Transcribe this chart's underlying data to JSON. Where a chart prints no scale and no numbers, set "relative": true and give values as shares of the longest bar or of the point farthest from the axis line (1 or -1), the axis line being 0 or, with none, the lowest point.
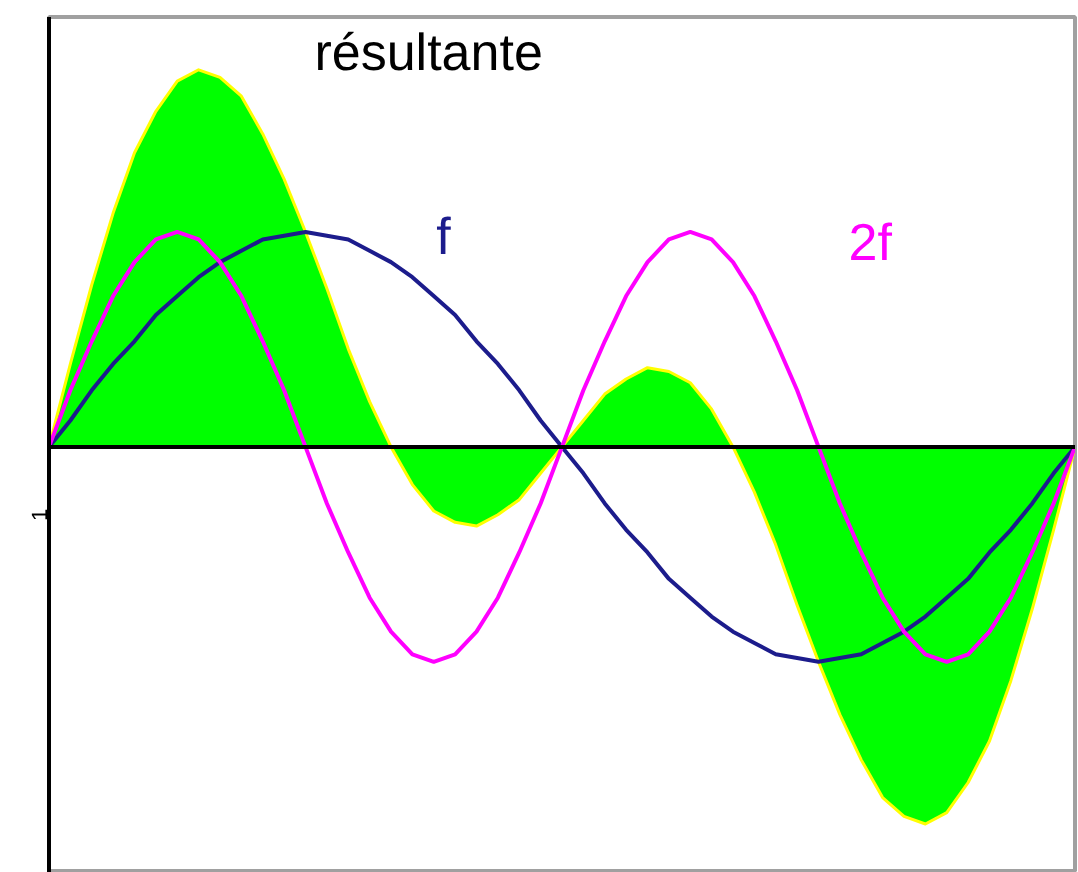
{
  "chart_data": {
    "type": "line",
    "relative": true,
    "categories": [
      null,
      null,
      null,
      null,
      null,
      null,
      null,
      null,
      null,
      null,
      null,
      null,
      null,
      null,
      null,
      null,
      null,
      null,
      null,
      null,
      null,
      null,
      null,
      null,
      null,
      null,
      null,
      null,
      null,
      null,
      null,
      null,
      null,
      null,
      null,
      null,
      null,
      null,
      null,
      null,
      null,
      null,
      null,
      null,
      null,
      null,
      null,
      null,
      null
    ],
    "series": [
      {
        "name": "résultante",
        "type": "area",
        "color": "#00ff00",
        "values": [
          0,
          0.22,
          0.43,
          0.62,
          0.78,
          0.89,
          0.97,
          1.0,
          0.98,
          0.93,
          0.83,
          0.71,
          0.57,
          0.42,
          0.26,
          0.12,
          0,
          -0.1,
          -0.17,
          -0.2,
          -0.21,
          -0.18,
          -0.14,
          -0.07,
          0,
          0.07,
          0.14,
          0.18,
          0.21,
          0.2,
          0.17,
          0.1,
          0,
          -0.12,
          -0.26,
          -0.42,
          -0.57,
          -0.71,
          -0.83,
          -0.93,
          -0.98,
          -1.0,
          -0.97,
          -0.89,
          -0.78,
          -0.62,
          -0.43,
          -0.22,
          0
        ]
      },
      {
        "name": "f",
        "color": "#1c1c8c",
        "values": [
          0,
          0.07,
          0.15,
          0.22,
          0.28,
          0.35,
          0.4,
          0.45,
          0.49,
          0.52,
          0.55,
          0.56,
          0.57,
          0.56,
          0.55,
          0.52,
          0.49,
          0.45,
          0.4,
          0.35,
          0.28,
          0.22,
          0.15,
          0.07,
          0,
          -0.07,
          -0.15,
          -0.22,
          -0.28,
          -0.35,
          -0.4,
          -0.45,
          -0.49,
          -0.52,
          -0.55,
          -0.56,
          -0.57,
          -0.56,
          -0.55,
          -0.52,
          -0.49,
          -0.45,
          -0.4,
          -0.35,
          -0.28,
          -0.22,
          -0.15,
          -0.07,
          0
        ]
      },
      {
        "name": "2f",
        "color": "#ff00ff",
        "values": [
          0,
          0.15,
          0.28,
          0.4,
          0.49,
          0.55,
          0.57,
          0.55,
          0.49,
          0.4,
          0.28,
          0.15,
          0,
          -0.15,
          -0.28,
          -0.4,
          -0.49,
          -0.55,
          -0.57,
          -0.55,
          -0.49,
          -0.4,
          -0.28,
          -0.15,
          0,
          0.15,
          0.28,
          0.4,
          0.49,
          0.55,
          0.57,
          0.55,
          0.49,
          0.4,
          0.28,
          0.15,
          0,
          -0.15,
          -0.28,
          -0.4,
          -0.49,
          -0.55,
          -0.57,
          -0.55,
          -0.49,
          -0.4,
          -0.28,
          -0.15,
          0
        ]
      }
    ],
    "annotations": [
      "1"
    ]
  }
}
